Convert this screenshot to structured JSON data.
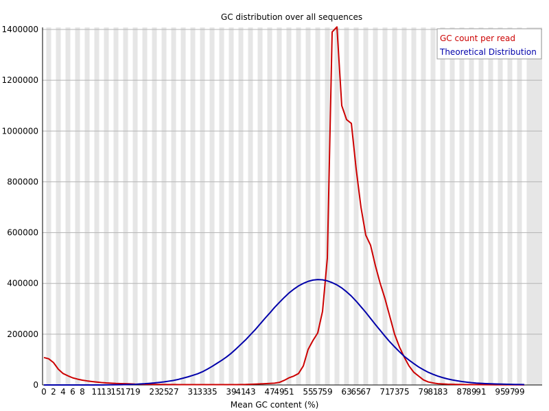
{
  "chart_data": {
    "type": "line",
    "title": "GC distribution over all sequences",
    "xlabel": "Mean GC content (%)",
    "ylabel": "",
    "xlim": [
      0,
      100
    ],
    "ylim": [
      0,
      1400000
    ],
    "y_ticks": [
      0,
      200000,
      400000,
      600000,
      800000,
      1000000,
      1200000,
      1400000
    ],
    "x_ticks": [
      0,
      2,
      4,
      6,
      8,
      11,
      13,
      15,
      17,
      19,
      23,
      25,
      27,
      31,
      33,
      35,
      39,
      41,
      43,
      47,
      49,
      51,
      55,
      57,
      59,
      63,
      65,
      67,
      71,
      73,
      75,
      79,
      81,
      83,
      87,
      89,
      91,
      95,
      97,
      99
    ],
    "grid": "horizontal lines, alternating vertical bands",
    "legend_position": "top-right",
    "series": [
      {
        "name": "GC count per read",
        "color": "#cc0000",
        "points": [
          [
            0,
            108000
          ],
          [
            1,
            103000
          ],
          [
            2,
            88000
          ],
          [
            3,
            62000
          ],
          [
            4,
            45000
          ],
          [
            5,
            36000
          ],
          [
            6,
            28000
          ],
          [
            7,
            23000
          ],
          [
            8,
            19000
          ],
          [
            9,
            16000
          ],
          [
            10,
            13500
          ],
          [
            11,
            11500
          ],
          [
            12,
            9500
          ],
          [
            13,
            8000
          ],
          [
            14,
            7000
          ],
          [
            15,
            6000
          ],
          [
            16,
            5500
          ],
          [
            17,
            5000
          ],
          [
            18,
            4500
          ],
          [
            19,
            3500
          ],
          [
            20,
            3000
          ],
          [
            22,
            2500
          ],
          [
            24,
            2000
          ],
          [
            26,
            1800
          ],
          [
            28,
            1500
          ],
          [
            30,
            1400
          ],
          [
            32,
            1300
          ],
          [
            34,
            1200
          ],
          [
            36,
            1200
          ],
          [
            38,
            1300
          ],
          [
            40,
            1500
          ],
          [
            42,
            2000
          ],
          [
            44,
            3500
          ],
          [
            46,
            5000
          ],
          [
            48,
            7000
          ],
          [
            49,
            10000
          ],
          [
            50,
            18000
          ],
          [
            51,
            28000
          ],
          [
            52,
            35000
          ],
          [
            53,
            45000
          ],
          [
            54,
            75000
          ],
          [
            55,
            140000
          ],
          [
            56,
            175000
          ],
          [
            57,
            205000
          ],
          [
            58,
            290000
          ],
          [
            59,
            500000
          ],
          [
            60,
            1390000
          ],
          [
            61,
            1410000
          ],
          [
            62,
            1100000
          ],
          [
            63,
            1045000
          ],
          [
            64,
            1030000
          ],
          [
            65,
            850000
          ],
          [
            66,
            700000
          ],
          [
            67,
            590000
          ],
          [
            68,
            550000
          ],
          [
            69,
            470000
          ],
          [
            70,
            400000
          ],
          [
            71,
            340000
          ],
          [
            72,
            270000
          ],
          [
            73,
            200000
          ],
          [
            74,
            150000
          ],
          [
            75,
            110000
          ],
          [
            76,
            75000
          ],
          [
            77,
            50000
          ],
          [
            78,
            35000
          ],
          [
            79,
            20000
          ],
          [
            80,
            12000
          ],
          [
            81,
            8000
          ],
          [
            82,
            5000
          ],
          [
            84,
            3000
          ],
          [
            86,
            2000
          ],
          [
            88,
            1500
          ],
          [
            90,
            1200
          ],
          [
            92,
            1000
          ],
          [
            94,
            800
          ],
          [
            96,
            600
          ],
          [
            98,
            500
          ],
          [
            100,
            400
          ]
        ]
      },
      {
        "name": "Theoretical Distribution",
        "color": "#0000aa",
        "points": [
          [
            0,
            0
          ],
          [
            2,
            0
          ],
          [
            4,
            0
          ],
          [
            6,
            0
          ],
          [
            8,
            0
          ],
          [
            10,
            0
          ],
          [
            12,
            0
          ],
          [
            14,
            500
          ],
          [
            16,
            1000
          ],
          [
            18,
            2000
          ],
          [
            19,
            2500
          ],
          [
            20,
            4000
          ],
          [
            21,
            5000
          ],
          [
            22,
            6500
          ],
          [
            23,
            8000
          ],
          [
            24,
            10000
          ],
          [
            25,
            12000
          ],
          [
            26,
            15000
          ],
          [
            27,
            18000
          ],
          [
            28,
            22000
          ],
          [
            29,
            27000
          ],
          [
            30,
            32000
          ],
          [
            31,
            38000
          ],
          [
            32,
            44000
          ],
          [
            33,
            52000
          ],
          [
            34,
            62000
          ],
          [
            35,
            73000
          ],
          [
            36,
            85000
          ],
          [
            37,
            97000
          ],
          [
            38,
            110000
          ],
          [
            39,
            125000
          ],
          [
            40,
            142000
          ],
          [
            41,
            160000
          ],
          [
            42,
            178000
          ],
          [
            43,
            198000
          ],
          [
            44,
            218000
          ],
          [
            45,
            240000
          ],
          [
            46,
            262000
          ],
          [
            47,
            283000
          ],
          [
            48,
            305000
          ],
          [
            49,
            325000
          ],
          [
            50,
            344000
          ],
          [
            51,
            362000
          ],
          [
            52,
            377000
          ],
          [
            53,
            390000
          ],
          [
            54,
            400000
          ],
          [
            55,
            408000
          ],
          [
            56,
            413000
          ],
          [
            57,
            415000
          ],
          [
            58,
            414000
          ],
          [
            59,
            410000
          ],
          [
            60,
            403000
          ],
          [
            61,
            394000
          ],
          [
            62,
            382000
          ],
          [
            63,
            367000
          ],
          [
            64,
            350000
          ],
          [
            65,
            330000
          ],
          [
            66,
            308000
          ],
          [
            67,
            286000
          ],
          [
            68,
            262000
          ],
          [
            69,
            238000
          ],
          [
            70,
            215000
          ],
          [
            71,
            192000
          ],
          [
            72,
            170000
          ],
          [
            73,
            150000
          ],
          [
            74,
            131000
          ],
          [
            75,
            113000
          ],
          [
            76,
            98000
          ],
          [
            77,
            84000
          ],
          [
            78,
            71000
          ],
          [
            79,
            60000
          ],
          [
            80,
            50000
          ],
          [
            81,
            42000
          ],
          [
            82,
            35000
          ],
          [
            83,
            29000
          ],
          [
            84,
            24000
          ],
          [
            85,
            20000
          ],
          [
            86,
            16500
          ],
          [
            87,
            13500
          ],
          [
            88,
            11000
          ],
          [
            89,
            9000
          ],
          [
            90,
            7500
          ],
          [
            92,
            5500
          ],
          [
            94,
            4000
          ],
          [
            96,
            3000
          ],
          [
            98,
            2000
          ],
          [
            100,
            1500
          ]
        ]
      }
    ]
  }
}
